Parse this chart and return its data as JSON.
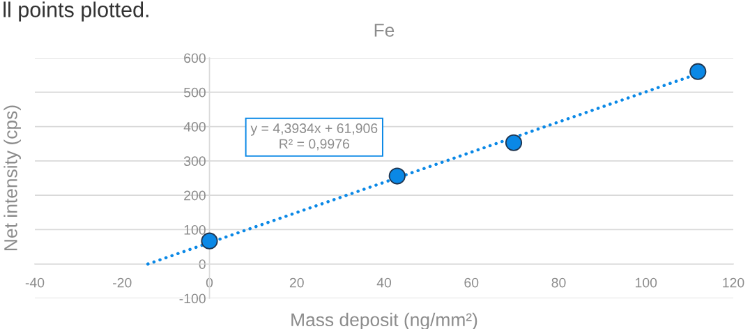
{
  "chart_data": {
    "type": "scatter",
    "title": "Fe",
    "xlabel": "Mass deposit (ng/mm²)",
    "ylabel": "Net intensity (cps)",
    "annotations": [
      "ll points plotted.",
      "y = 4,3934x + 61,906\nR² = 0,9976"
    ],
    "series": [
      {
        "type": "scatter",
        "color": "#0a88e6",
        "x": [
          0,
          43,
          69.7,
          111.9
        ],
        "values": [
          67,
          256,
          353,
          560
        ],
        "marker": "circle"
      },
      {
        "type": "line",
        "color": "#0a88e6",
        "x": [
          -14.1,
          112
        ],
        "values": [
          0,
          554
        ],
        "line_style": "dotted",
        "marker": "none"
      }
    ],
    "xlim": [
      -40,
      120
    ],
    "xticks": [
      {
        "value": -40,
        "label": "-40"
      },
      {
        "value": -20,
        "label": "-20"
      },
      0,
      20,
      40,
      60,
      80,
      100,
      120
    ],
    "ylim": [
      -100,
      600
    ],
    "yticks": [
      {
        "value": -100,
        "label": "-100"
      },
      0,
      100,
      200,
      300,
      400,
      500,
      600
    ],
    "grid": "y",
    "legend": false
  }
}
